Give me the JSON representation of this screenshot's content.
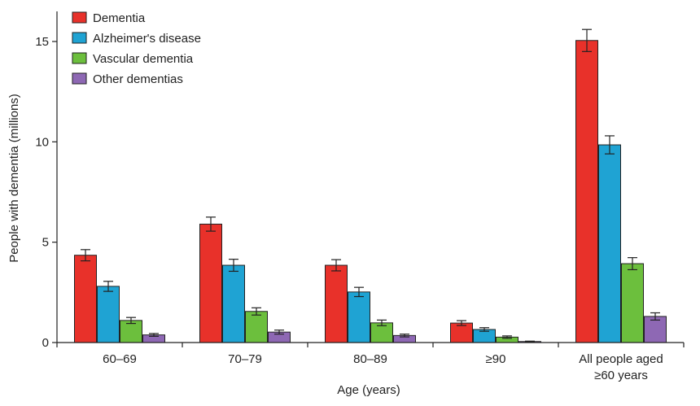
{
  "chart_data": {
    "type": "bar",
    "xlabel": "Age (years)",
    "ylabel": "People with dementia (millions)",
    "ylim": [
      0,
      16.5
    ],
    "yticks": [
      0,
      5,
      10,
      15
    ],
    "ytick_labels": [
      "0",
      "5",
      "10",
      "15"
    ],
    "categories": [
      "60–69",
      "70–79",
      "80–89",
      "≥90",
      "All people aged ≥60 years"
    ],
    "category_label_lines": [
      [
        "60–69"
      ],
      [
        "70–79"
      ],
      [
        "80–89"
      ],
      [
        "≥90"
      ],
      [
        "All people aged",
        "≥60 years"
      ]
    ],
    "legend_position": "top-left",
    "grid": false,
    "error_bars": true,
    "series": [
      {
        "name": "Dementia",
        "color": "#e8312a",
        "values": [
          4.35,
          5.9,
          3.85,
          0.97,
          15.05
        ],
        "err": [
          0.28,
          0.35,
          0.28,
          0.12,
          0.55
        ]
      },
      {
        "name": "Alzheimer's disease",
        "color": "#1fa3d3",
        "values": [
          2.8,
          3.85,
          2.52,
          0.65,
          9.85
        ],
        "err": [
          0.25,
          0.3,
          0.23,
          0.09,
          0.45
        ]
      },
      {
        "name": "Vascular dementia",
        "color": "#6cbf3d",
        "values": [
          1.1,
          1.55,
          0.98,
          0.27,
          3.93
        ],
        "err": [
          0.15,
          0.18,
          0.14,
          0.06,
          0.3
        ]
      },
      {
        "name": "Other dementias",
        "color": "#8e68b4",
        "values": [
          0.38,
          0.52,
          0.35,
          0.05,
          1.3
        ],
        "err": [
          0.07,
          0.1,
          0.07,
          0.02,
          0.18
        ]
      }
    ]
  }
}
